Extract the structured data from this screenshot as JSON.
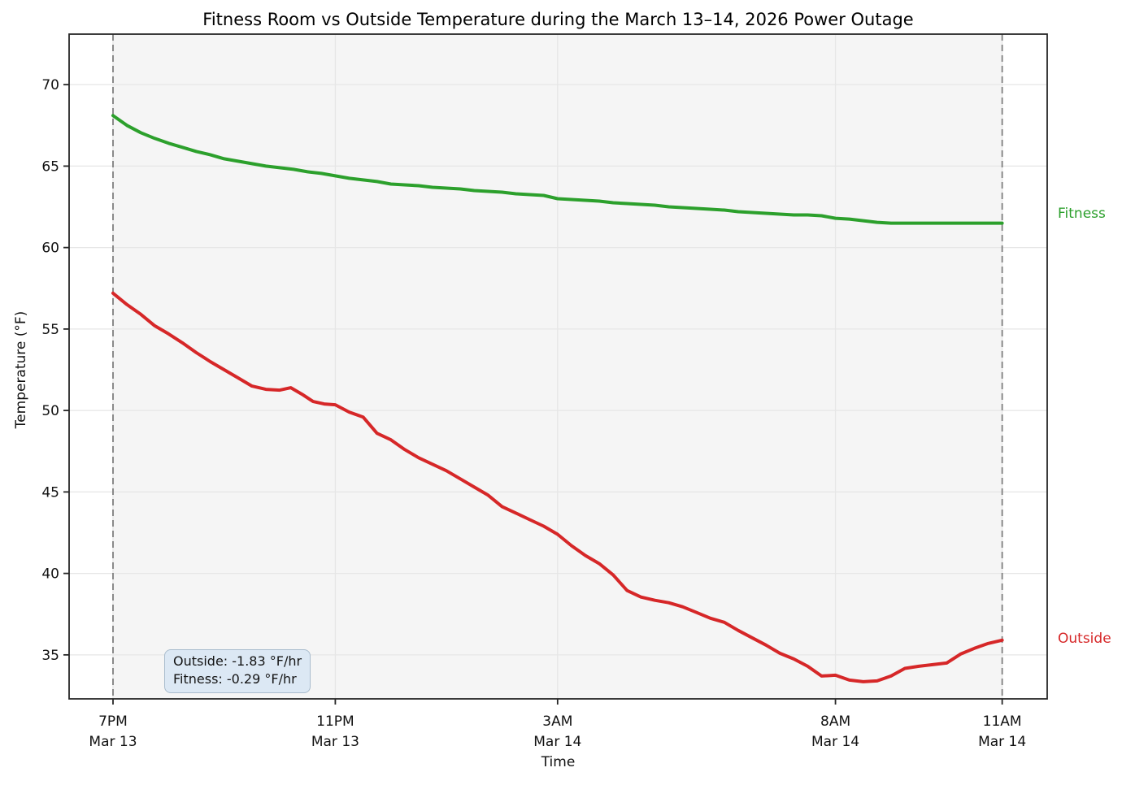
{
  "chart_data": {
    "type": "line",
    "title": "Fitness Room vs Outside Temperature during the March 13–14, 2026 Power Outage",
    "xlabel": "Time",
    "ylabel": "Temperature (°F)",
    "x_unit": "hours since 7PM Mar 13",
    "xlim": [
      -0.79,
      16.81
    ],
    "ylim": [
      32.3,
      73.1
    ],
    "y_ticks": [
      35,
      40,
      45,
      50,
      55,
      60,
      65,
      70
    ],
    "x_ticks": [
      {
        "t": 0,
        "line1": "7PM",
        "line2": "Mar 13"
      },
      {
        "t": 4,
        "line1": "11PM",
        "line2": "Mar 13"
      },
      {
        "t": 8,
        "line1": "3AM",
        "line2": "Mar 14"
      },
      {
        "t": 13,
        "line1": "8AM",
        "line2": "Mar 14"
      },
      {
        "t": 16,
        "line1": "11AM",
        "line2": "Mar 14"
      }
    ],
    "grid": true,
    "outage_span": {
      "start": 0,
      "end": 16,
      "fill": "#f5f5f5"
    },
    "dashed_lines": [
      0,
      16
    ],
    "dashed_line_color": "#7f7f7f",
    "grid_color": "#e6e6e6",
    "spine_color": "#262626",
    "annotation": {
      "line1": "Outside: -1.83 °F/hr",
      "line2": "Fitness: -0.29 °F/hr",
      "box_fill": "#dce8f4"
    },
    "series": [
      {
        "name": "Fitness",
        "color": "#2ca02c",
        "label_y": 62.0,
        "points": [
          [
            0,
            68.1
          ],
          [
            0.25,
            67.5
          ],
          [
            0.5,
            67.05
          ],
          [
            0.75,
            66.7
          ],
          [
            1,
            66.4
          ],
          [
            1.25,
            66.15
          ],
          [
            1.5,
            65.9
          ],
          [
            1.75,
            65.7
          ],
          [
            2,
            65.45
          ],
          [
            2.25,
            65.3
          ],
          [
            2.5,
            65.15
          ],
          [
            2.75,
            65.0
          ],
          [
            3,
            64.9
          ],
          [
            3.25,
            64.8
          ],
          [
            3.5,
            64.65
          ],
          [
            3.75,
            64.55
          ],
          [
            4,
            64.4
          ],
          [
            4.25,
            64.25
          ],
          [
            4.5,
            64.15
          ],
          [
            4.75,
            64.05
          ],
          [
            5,
            63.9
          ],
          [
            5.25,
            63.85
          ],
          [
            5.5,
            63.8
          ],
          [
            5.75,
            63.7
          ],
          [
            6,
            63.65
          ],
          [
            6.25,
            63.6
          ],
          [
            6.5,
            63.5
          ],
          [
            6.75,
            63.45
          ],
          [
            7,
            63.4
          ],
          [
            7.25,
            63.3
          ],
          [
            7.5,
            63.25
          ],
          [
            7.75,
            63.2
          ],
          [
            8,
            63.0
          ],
          [
            8.25,
            62.95
          ],
          [
            8.5,
            62.9
          ],
          [
            8.75,
            62.85
          ],
          [
            9,
            62.75
          ],
          [
            9.25,
            62.7
          ],
          [
            9.5,
            62.65
          ],
          [
            9.75,
            62.6
          ],
          [
            10,
            62.5
          ],
          [
            10.25,
            62.45
          ],
          [
            10.5,
            62.4
          ],
          [
            10.75,
            62.35
          ],
          [
            11,
            62.3
          ],
          [
            11.25,
            62.2
          ],
          [
            11.5,
            62.15
          ],
          [
            11.75,
            62.1
          ],
          [
            12,
            62.05
          ],
          [
            12.25,
            62.0
          ],
          [
            12.5,
            62.0
          ],
          [
            12.75,
            61.95
          ],
          [
            13,
            61.8
          ],
          [
            13.25,
            61.75
          ],
          [
            13.5,
            61.65
          ],
          [
            13.75,
            61.55
          ],
          [
            14,
            61.5
          ],
          [
            14.5,
            61.5
          ],
          [
            15,
            61.5
          ],
          [
            15.5,
            61.5
          ],
          [
            16,
            61.5
          ]
        ]
      },
      {
        "name": "Outside",
        "color": "#d62728",
        "label_y": 35.9,
        "points": [
          [
            0,
            57.2
          ],
          [
            0.25,
            56.5
          ],
          [
            0.5,
            55.9
          ],
          [
            0.75,
            55.2
          ],
          [
            1,
            54.7
          ],
          [
            1.25,
            54.15
          ],
          [
            1.5,
            53.55
          ],
          [
            1.75,
            53.0
          ],
          [
            2,
            52.5
          ],
          [
            2.25,
            52.0
          ],
          [
            2.5,
            51.5
          ],
          [
            2.75,
            51.3
          ],
          [
            3,
            51.25
          ],
          [
            3.2,
            51.4
          ],
          [
            3.4,
            51.0
          ],
          [
            3.6,
            50.55
          ],
          [
            3.8,
            50.4
          ],
          [
            4,
            50.35
          ],
          [
            4.25,
            49.9
          ],
          [
            4.5,
            49.6
          ],
          [
            4.75,
            48.6
          ],
          [
            5,
            48.2
          ],
          [
            5.25,
            47.6
          ],
          [
            5.5,
            47.1
          ],
          [
            5.75,
            46.7
          ],
          [
            6,
            46.3
          ],
          [
            6.25,
            45.8
          ],
          [
            6.5,
            45.3
          ],
          [
            6.75,
            44.8
          ],
          [
            7,
            44.1
          ],
          [
            7.25,
            43.7
          ],
          [
            7.5,
            43.3
          ],
          [
            7.75,
            42.9
          ],
          [
            8,
            42.4
          ],
          [
            8.25,
            41.7
          ],
          [
            8.5,
            41.1
          ],
          [
            8.75,
            40.6
          ],
          [
            9,
            39.9
          ],
          [
            9.25,
            38.95
          ],
          [
            9.5,
            38.55
          ],
          [
            9.75,
            38.35
          ],
          [
            10,
            38.2
          ],
          [
            10.25,
            37.95
          ],
          [
            10.5,
            37.6
          ],
          [
            10.75,
            37.25
          ],
          [
            11,
            37.0
          ],
          [
            11.25,
            36.5
          ],
          [
            11.5,
            36.05
          ],
          [
            11.75,
            35.6
          ],
          [
            12,
            35.1
          ],
          [
            12.25,
            34.75
          ],
          [
            12.5,
            34.3
          ],
          [
            12.75,
            33.7
          ],
          [
            13,
            33.75
          ],
          [
            13.25,
            33.45
          ],
          [
            13.5,
            33.35
          ],
          [
            13.75,
            33.4
          ],
          [
            14,
            33.7
          ],
          [
            14.25,
            34.17
          ],
          [
            14.5,
            34.3
          ],
          [
            14.75,
            34.4
          ],
          [
            15,
            34.5
          ],
          [
            15.25,
            35.05
          ],
          [
            15.5,
            35.4
          ],
          [
            15.75,
            35.7
          ],
          [
            16,
            35.9
          ]
        ]
      }
    ]
  }
}
